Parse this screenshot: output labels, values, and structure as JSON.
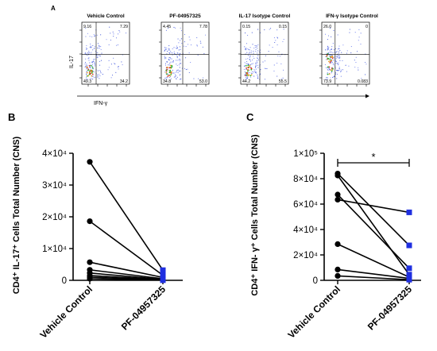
{
  "panels": {
    "A": {
      "label": "A",
      "ylabel": "IL-17",
      "xlabel": "IFN-γ",
      "plots": [
        {
          "title": "Vehicle Control",
          "q_ul": "9.16",
          "q_ur": "7.29",
          "q_ll": "49.3",
          "q_lr": "34.2"
        },
        {
          "title": "PF-04957325",
          "q_ul": "4.45",
          "q_ur": "7.78",
          "q_ll": "34.8",
          "q_lr": "53.0"
        },
        {
          "title": "IL-17 Isotype Control",
          "q_ul": "0.15",
          "q_ur": "0.15",
          "q_ll": "44.2",
          "q_lr": "55.5"
        },
        {
          "title": "IFN-γ Isotype Control",
          "q_ul": "26.0",
          "q_ur": "0",
          "q_ll": "73.9",
          "q_lr": "0.083"
        }
      ]
    },
    "B": {
      "label": "B"
    },
    "C": {
      "label": "C"
    }
  },
  "colors": {
    "vehicle": "#000000",
    "pf": "#1f2fe0",
    "line": "#000000"
  },
  "chart_data": [
    {
      "type": "line",
      "panel": "B",
      "categories": [
        "Vehicle Control",
        "PF-04957325"
      ],
      "ylabel": "CD4⁺ IL-17⁺ Cells Total Number (CNS)",
      "ylim": [
        0,
        40000
      ],
      "yticks": [
        "0",
        "1×10⁴",
        "2×10⁴",
        "3×10⁴",
        "4×10⁴"
      ],
      "pairs": [
        [
          37300,
          3200
        ],
        [
          18600,
          1600
        ],
        [
          5700,
          900
        ],
        [
          3300,
          500
        ],
        [
          2300,
          300
        ],
        [
          1500,
          200
        ],
        [
          1000,
          100
        ],
        [
          500,
          50
        ]
      ]
    },
    {
      "type": "line",
      "panel": "C",
      "categories": [
        "Vehicle Control",
        "PF-04957325"
      ],
      "ylabel": "CD4⁺ IFN- γ⁺ Cells Total Number (CNS)",
      "ylim": [
        0,
        100000
      ],
      "yticks": [
        "0",
        "2×10⁴",
        "4×10⁴",
        "6×10⁴",
        "8×10⁴",
        "1×10⁵"
      ],
      "significance": "*",
      "pairs": [
        [
          84000,
          27500
        ],
        [
          82500,
          4500
        ],
        [
          67500,
          9500
        ],
        [
          63500,
          53500
        ],
        [
          28500,
          2500
        ],
        [
          8500,
          1500
        ],
        [
          3500,
          500
        ]
      ]
    }
  ]
}
